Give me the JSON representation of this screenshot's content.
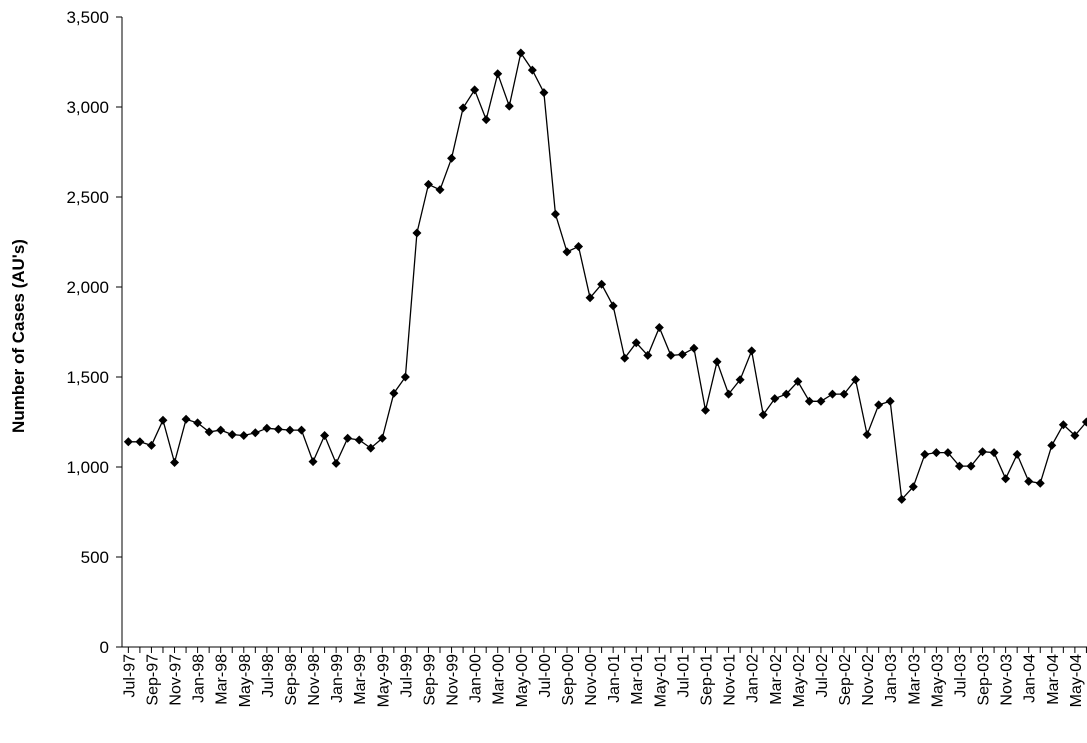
{
  "chart_data": {
    "type": "line",
    "title": "",
    "xlabel": "",
    "ylabel": "Number of Cases (AU's)",
    "ylim": [
      0,
      3500
    ],
    "yticks": [
      0,
      500,
      1000,
      1500,
      2000,
      2500,
      3000,
      3500
    ],
    "ytick_labels": [
      "0",
      "500",
      "1,000",
      "1,500",
      "2,000",
      "2,500",
      "3,000",
      "3,500"
    ],
    "grid": false,
    "legend": "none",
    "marker": "diamond",
    "line_color": "#000000",
    "x": [
      "Jul-97",
      "Aug-97",
      "Sep-97",
      "Oct-97",
      "Nov-97",
      "Dec-97",
      "Jan-98",
      "Feb-98",
      "Mar-98",
      "Apr-98",
      "May-98",
      "Jun-98",
      "Jul-98",
      "Aug-98",
      "Sep-98",
      "Oct-98",
      "Nov-98",
      "Dec-98",
      "Jan-99",
      "Feb-99",
      "Mar-99",
      "Apr-99",
      "May-99",
      "Jun-99",
      "Jul-99",
      "Aug-99",
      "Sep-99",
      "Oct-99",
      "Nov-99",
      "Dec-99",
      "Jan-00",
      "Feb-00",
      "Mar-00",
      "Apr-00",
      "May-00",
      "Jun-00",
      "Jul-00",
      "Aug-00",
      "Sep-00",
      "Oct-00",
      "Nov-00",
      "Dec-00",
      "Jan-01",
      "Feb-01",
      "Mar-01",
      "Apr-01",
      "May-01",
      "Jun-01",
      "Jul-01",
      "Aug-01",
      "Sep-01",
      "Oct-01",
      "Nov-01",
      "Dec-01",
      "Jan-02",
      "Feb-02",
      "Mar-02",
      "Apr-02",
      "May-02",
      "Jun-02",
      "Jul-02",
      "Aug-02",
      "Sep-02",
      "Oct-02",
      "Nov-02",
      "Dec-02",
      "Jan-03",
      "Feb-03",
      "Mar-03",
      "Apr-03",
      "May-03",
      "Jun-03",
      "Jul-03",
      "Aug-03",
      "Sep-03",
      "Oct-03",
      "Nov-03",
      "Dec-03",
      "Jan-04",
      "Feb-04",
      "Mar-04",
      "Apr-04",
      "May-04",
      "Jun-04"
    ],
    "xtick_labels": [
      "Jul-97",
      "Sep-97",
      "Nov-97",
      "Jan-98",
      "Mar-98",
      "May-98",
      "Jul-98",
      "Sep-98",
      "Nov-98",
      "Jan-99",
      "Mar-99",
      "May-99",
      "Jul-99",
      "Sep-99",
      "Nov-99",
      "Jan-00",
      "Mar-00",
      "May-00",
      "Jul-00",
      "Sep-00",
      "Nov-00",
      "Jan-01",
      "Mar-01",
      "May-01",
      "Jul-01",
      "Sep-01",
      "Nov-01",
      "Jan-02",
      "Mar-02",
      "May-02",
      "Jul-02",
      "Sep-02",
      "Nov-02",
      "Jan-03",
      "Mar-03",
      "May-03",
      "Jul-03",
      "Sep-03",
      "Nov-03",
      "Jan-04",
      "Mar-04",
      "May-04"
    ],
    "series": [
      {
        "values": [
          1140,
          1140,
          1120,
          1260,
          1025,
          1265,
          1245,
          1195,
          1205,
          1180,
          1175,
          1190,
          1215,
          1210,
          1205,
          1205,
          1030,
          1175,
          1020,
          1160,
          1150,
          1105,
          1160,
          1410,
          1500,
          2300,
          2570,
          2540,
          2715,
          2995,
          3095,
          2930,
          3185,
          3005,
          3300,
          3205,
          3080,
          2405,
          2195,
          2225,
          1940,
          2015,
          1895,
          1605,
          1690,
          1620,
          1775,
          1620,
          1625,
          1660,
          1315,
          1585,
          1405,
          1485,
          1645,
          1290,
          1380,
          1405,
          1475,
          1365,
          1365,
          1405,
          1405,
          1485,
          1180,
          1345,
          1365,
          820,
          890,
          1070,
          1080,
          1080,
          1005,
          1005,
          1085,
          1080,
          935,
          1070,
          920,
          910,
          1120,
          1235,
          1175,
          1250
        ]
      }
    ]
  }
}
